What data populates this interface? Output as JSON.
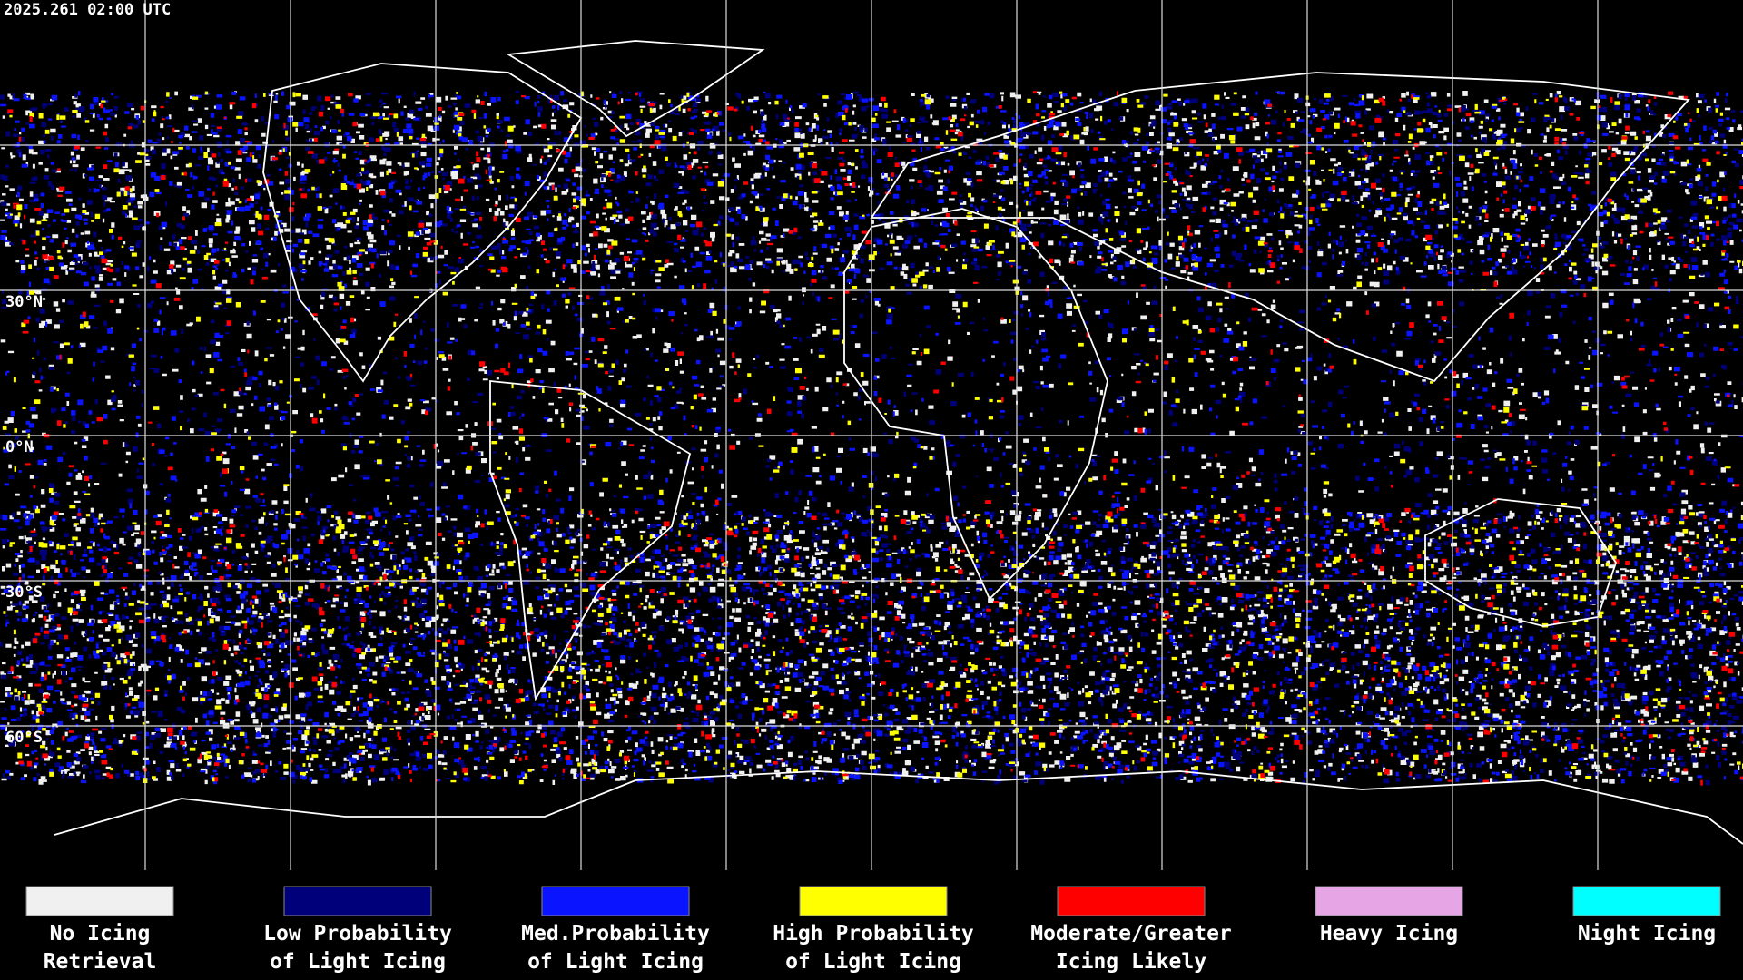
{
  "header": {
    "timestamp": "2025.261 02:00 UTC"
  },
  "map": {
    "latitude_labels": [
      "30°N",
      "0°N",
      "30°S",
      "60°S"
    ]
  },
  "legend": [
    {
      "lines": [
        "No Icing",
        "Retrieval"
      ],
      "color": "#f0f0f0"
    },
    {
      "lines": [
        "Low Probability",
        "of Light Icing"
      ],
      "color": "#00007a"
    },
    {
      "lines": [
        "Med.Probability",
        "of Light Icing"
      ],
      "color": "#0a14ff"
    },
    {
      "lines": [
        "High Probability",
        "of Light Icing"
      ],
      "color": "#ffff00"
    },
    {
      "lines": [
        "Moderate/Greater",
        "Icing Likely"
      ],
      "color": "#ff0000"
    },
    {
      "lines": [
        "Heavy Icing"
      ],
      "color": "#e6a6e6"
    },
    {
      "lines": [
        "Night Icing"
      ],
      "color": "#00ffff"
    }
  ]
}
